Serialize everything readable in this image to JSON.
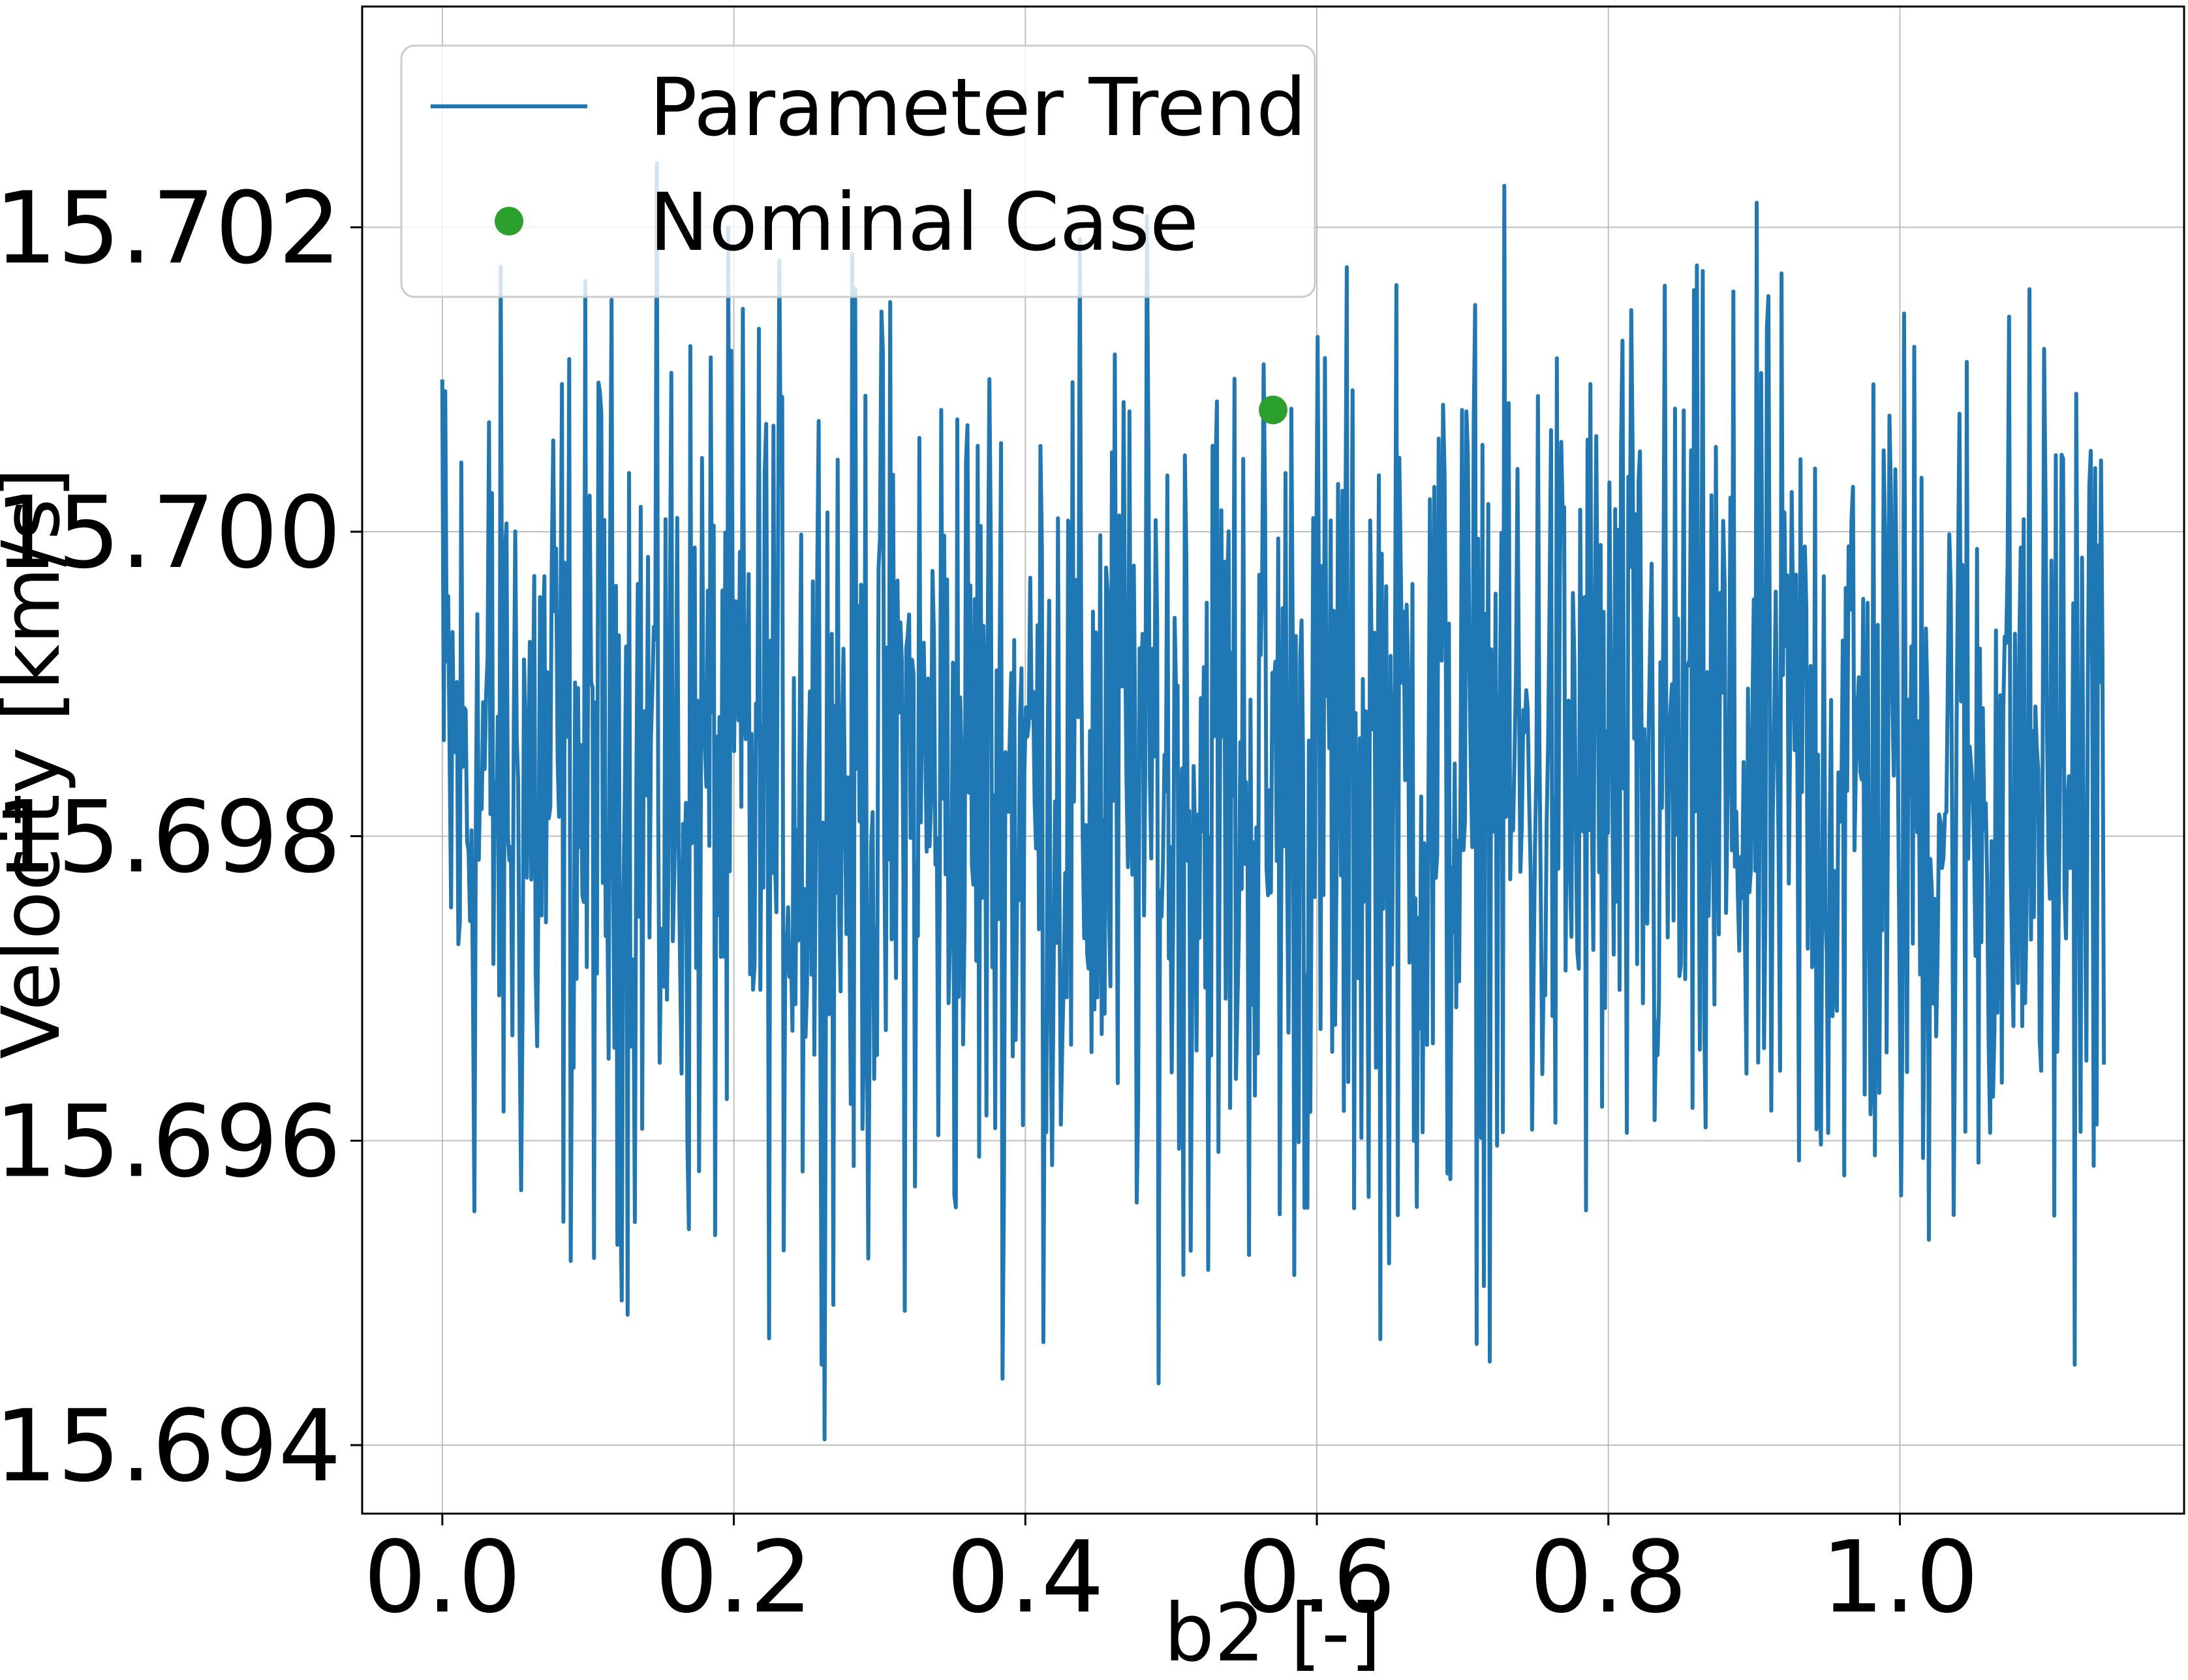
{
  "chart_data": {
    "type": "line",
    "title": "",
    "xlabel": "b2 [-]",
    "ylabel": "Velocity [km/s]",
    "xlim": [
      -0.055,
      1.195
    ],
    "ylim": [
      15.69355,
      15.70345
    ],
    "xticks": [
      0.0,
      0.2,
      0.4,
      0.6,
      0.8,
      1.0
    ],
    "xtick_labels": [
      "0.0",
      "0.2",
      "0.4",
      "0.6",
      "0.8",
      "1.0"
    ],
    "yticks": [
      15.694,
      15.696,
      15.698,
      15.7,
      15.702
    ],
    "ytick_labels": [
      "15.694",
      "15.696",
      "15.698",
      "15.700",
      "15.702"
    ],
    "grid": true,
    "legend_position": "top-left",
    "trend": {
      "name": "Parameter Trend",
      "color": "#1f77b4",
      "x_start": 0.0,
      "x_end": 1.14,
      "n_points": 1140,
      "y_mean": 15.6983,
      "y_min": 15.694,
      "y_max": 15.7031,
      "y_start": 15.701,
      "y_end": 15.6965
    },
    "nominal": {
      "name": "Nominal Case",
      "color": "#2ca02c",
      "x": 0.57,
      "y": 15.7008
    }
  }
}
